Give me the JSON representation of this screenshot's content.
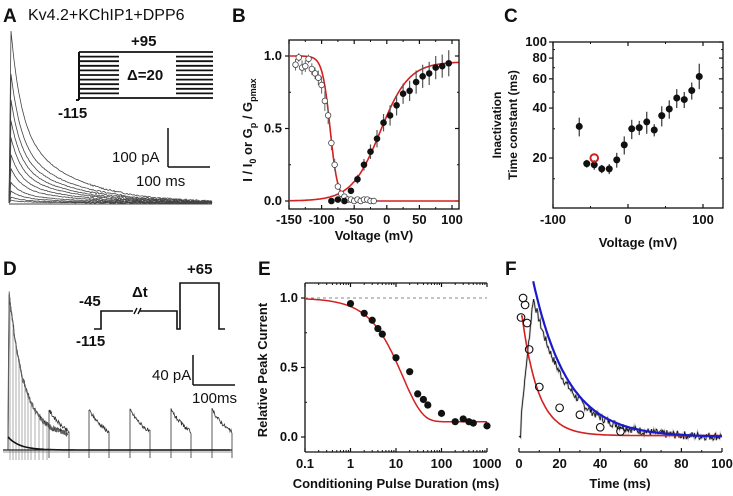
{
  "figure": {
    "panels": [
      "A",
      "B",
      "C",
      "D",
      "E",
      "F"
    ]
  },
  "chart_data": [
    {
      "panel": "A",
      "type": "line",
      "title": "Kv4.2+KChIP1+DPP6",
      "description": "Family of outward current traces",
      "protocol": {
        "hold_label": "-115",
        "top_label": "+95",
        "step_label": "Δ=20",
        "n_steps": 11
      },
      "scale_bar": {
        "y_label": "100 pA",
        "x_label": "100 ms"
      },
      "trace_peaks_relative": [
        1.0,
        0.75,
        0.6,
        0.48,
        0.38,
        0.28,
        0.2,
        0.12,
        0.07,
        0.035,
        0.015
      ]
    },
    {
      "panel": "B",
      "type": "scatter",
      "xlabel": "Voltage (mV)",
      "ylabel": "I / I0 or Gp / Gpmax",
      "xlim": [
        -150,
        110
      ],
      "ylim": [
        -0.08,
        1.1
      ],
      "xticks": [
        "-150",
        "-100",
        "-50",
        "0",
        "50",
        "100"
      ],
      "yticks": [
        "0.0",
        "0.5",
        "1.0"
      ],
      "series": [
        {
          "name": "steady-state inactivation (open)",
          "marker": "open-circle",
          "x": [
            -140,
            -135,
            -130,
            -125,
            -120,
            -115,
            -110,
            -105,
            -100,
            -95,
            -90,
            -85,
            -80,
            -75,
            -70,
            -65,
            -60,
            -55,
            -50,
            -45,
            -40,
            -35,
            -30,
            -25,
            -20
          ],
          "y": [
            0.94,
            0.99,
            0.92,
            0.93,
            0.98,
            0.91,
            0.88,
            0.85,
            0.8,
            0.69,
            0.59,
            0.4,
            0.25,
            0.1,
            0.05,
            0.03,
            0.01,
            0.01,
            0.0,
            0.01,
            0.0,
            0.01,
            0.01,
            0.0,
            0.0
          ],
          "err": [
            0.04,
            0.03,
            0.05,
            0.04,
            0.03,
            0.04,
            0.04,
            0.05,
            0.06,
            0.07,
            0.06,
            0.05,
            0.04,
            0.02,
            0.01,
            0.01,
            0.01,
            0.01,
            0.01,
            0.01,
            0.01,
            0.01,
            0.01,
            0.01,
            0.01
          ]
        },
        {
          "name": "conductance (filled)",
          "marker": "filled-circle",
          "x": [
            -85,
            -75,
            -65,
            -55,
            -45,
            -35,
            -25,
            -15,
            -5,
            5,
            15,
            25,
            35,
            45,
            55,
            65,
            75,
            85,
            95
          ],
          "y": [
            0.0,
            0.01,
            0.0,
            0.07,
            0.15,
            0.25,
            0.34,
            0.43,
            0.54,
            0.59,
            0.66,
            0.74,
            0.76,
            0.82,
            0.86,
            0.88,
            0.92,
            0.93,
            0.95
          ],
          "err": [
            0.01,
            0.01,
            0.01,
            0.02,
            0.03,
            0.04,
            0.05,
            0.06,
            0.06,
            0.07,
            0.07,
            0.07,
            0.07,
            0.08,
            0.08,
            0.08,
            0.08,
            0.08,
            0.09
          ]
        }
      ],
      "fits": [
        {
          "name": "inactivation Boltzmann",
          "color": "#d42020",
          "v_half": -87,
          "k": 6,
          "direction": "decreasing"
        },
        {
          "name": "activation Boltzmann",
          "color": "#d42020",
          "v_half": -10,
          "k": 22,
          "max": 0.96,
          "direction": "increasing"
        }
      ]
    },
    {
      "panel": "C",
      "type": "scatter",
      "xlabel": "Voltage (mV)",
      "ylabel": "Inactivation Time constant (ms)",
      "yscale": "log",
      "xlim": [
        -100,
        125
      ],
      "ylim": [
        10,
        100
      ],
      "xticks": [
        "-100",
        "0",
        "100"
      ],
      "yticks": [
        "20",
        "40",
        "60",
        "80",
        "100"
      ],
      "series": [
        {
          "name": "tau inactivation",
          "marker": "filled-circle",
          "x": [
            -65,
            -55,
            -45,
            -35,
            -25,
            -15,
            -5,
            5,
            15,
            25,
            35,
            45,
            55,
            65,
            75,
            85,
            95
          ],
          "y": [
            31,
            18.5,
            18.2,
            17.2,
            17.2,
            19.5,
            24,
            30,
            30.5,
            33,
            29.5,
            36,
            39.5,
            46,
            45,
            51,
            62
          ],
          "err_up": [
            4,
            1,
            1.2,
            1,
            1.2,
            2,
            3,
            4,
            3,
            5,
            2.5,
            5,
            5,
            6,
            5,
            6,
            12
          ],
          "err_down": [
            4,
            1,
            1.2,
            1,
            1.2,
            2,
            3,
            4,
            3,
            5,
            2.5,
            5,
            5,
            6,
            5,
            6,
            10
          ]
        },
        {
          "name": "highlighted point",
          "marker": "open-circle",
          "color": "#d42020",
          "x": [
            -45
          ],
          "y": [
            20
          ]
        }
      ]
    },
    {
      "panel": "D",
      "type": "line",
      "description": "Recovery/conditioning protocol current traces",
      "protocol": {
        "hold_label": "-115",
        "conditioning_label": "-45",
        "interval_label": "Δt",
        "test_label": "+65"
      },
      "scale_bar": {
        "y_label": "40 pA",
        "x_label": "100ms"
      }
    },
    {
      "panel": "E",
      "type": "scatter",
      "xlabel": "Conditioning Pulse Duration (ms)",
      "ylabel": "Relative Peak Current",
      "xscale": "log",
      "xlim": [
        0.1,
        1000
      ],
      "ylim": [
        -0.08,
        1.1
      ],
      "xticks": [
        "0.1",
        "1",
        "10",
        "100",
        "1000"
      ],
      "yticks": [
        "0.0",
        "0.5",
        "1.0"
      ],
      "reference_line": 1.0,
      "series": [
        {
          "name": "relative peak current",
          "marker": "filled-circle",
          "x": [
            1,
            2,
            3,
            4,
            5,
            10,
            20,
            30,
            40,
            50,
            100,
            200,
            300,
            400,
            500,
            1000
          ],
          "y": [
            0.96,
            0.89,
            0.84,
            0.78,
            0.74,
            0.57,
            0.47,
            0.31,
            0.27,
            0.23,
            0.17,
            0.11,
            0.13,
            0.11,
            0.1,
            0.08
          ]
        }
      ],
      "fits": [
        {
          "name": "exponential fit",
          "color": "#d42020",
          "tau_ms": 14,
          "plateau": 0.11
        }
      ]
    },
    {
      "panel": "F",
      "type": "line",
      "xlabel": "Time (ms)",
      "xlim": [
        0,
        100
      ],
      "ylim": [
        -0.08,
        1.1
      ],
      "xticks": [
        "0",
        "20",
        "40",
        "60",
        "80",
        "100"
      ],
      "series": [
        {
          "name": "normalized data points",
          "marker": "open-circle",
          "x": [
            1,
            2,
            3,
            4,
            5,
            10,
            20,
            30,
            40,
            50
          ],
          "y": [
            0.86,
            1.0,
            0.95,
            0.82,
            0.63,
            0.36,
            0.21,
            0.16,
            0.07,
            0.04
          ]
        }
      ],
      "fits": [
        {
          "name": "data point fit",
          "color": "#d42020",
          "tau_ms": 8,
          "plateau": 0.01
        },
        {
          "name": "current decay fit",
          "color": "#1a1acc",
          "tau_ms": 17,
          "plateau": 0.0
        }
      ]
    }
  ]
}
